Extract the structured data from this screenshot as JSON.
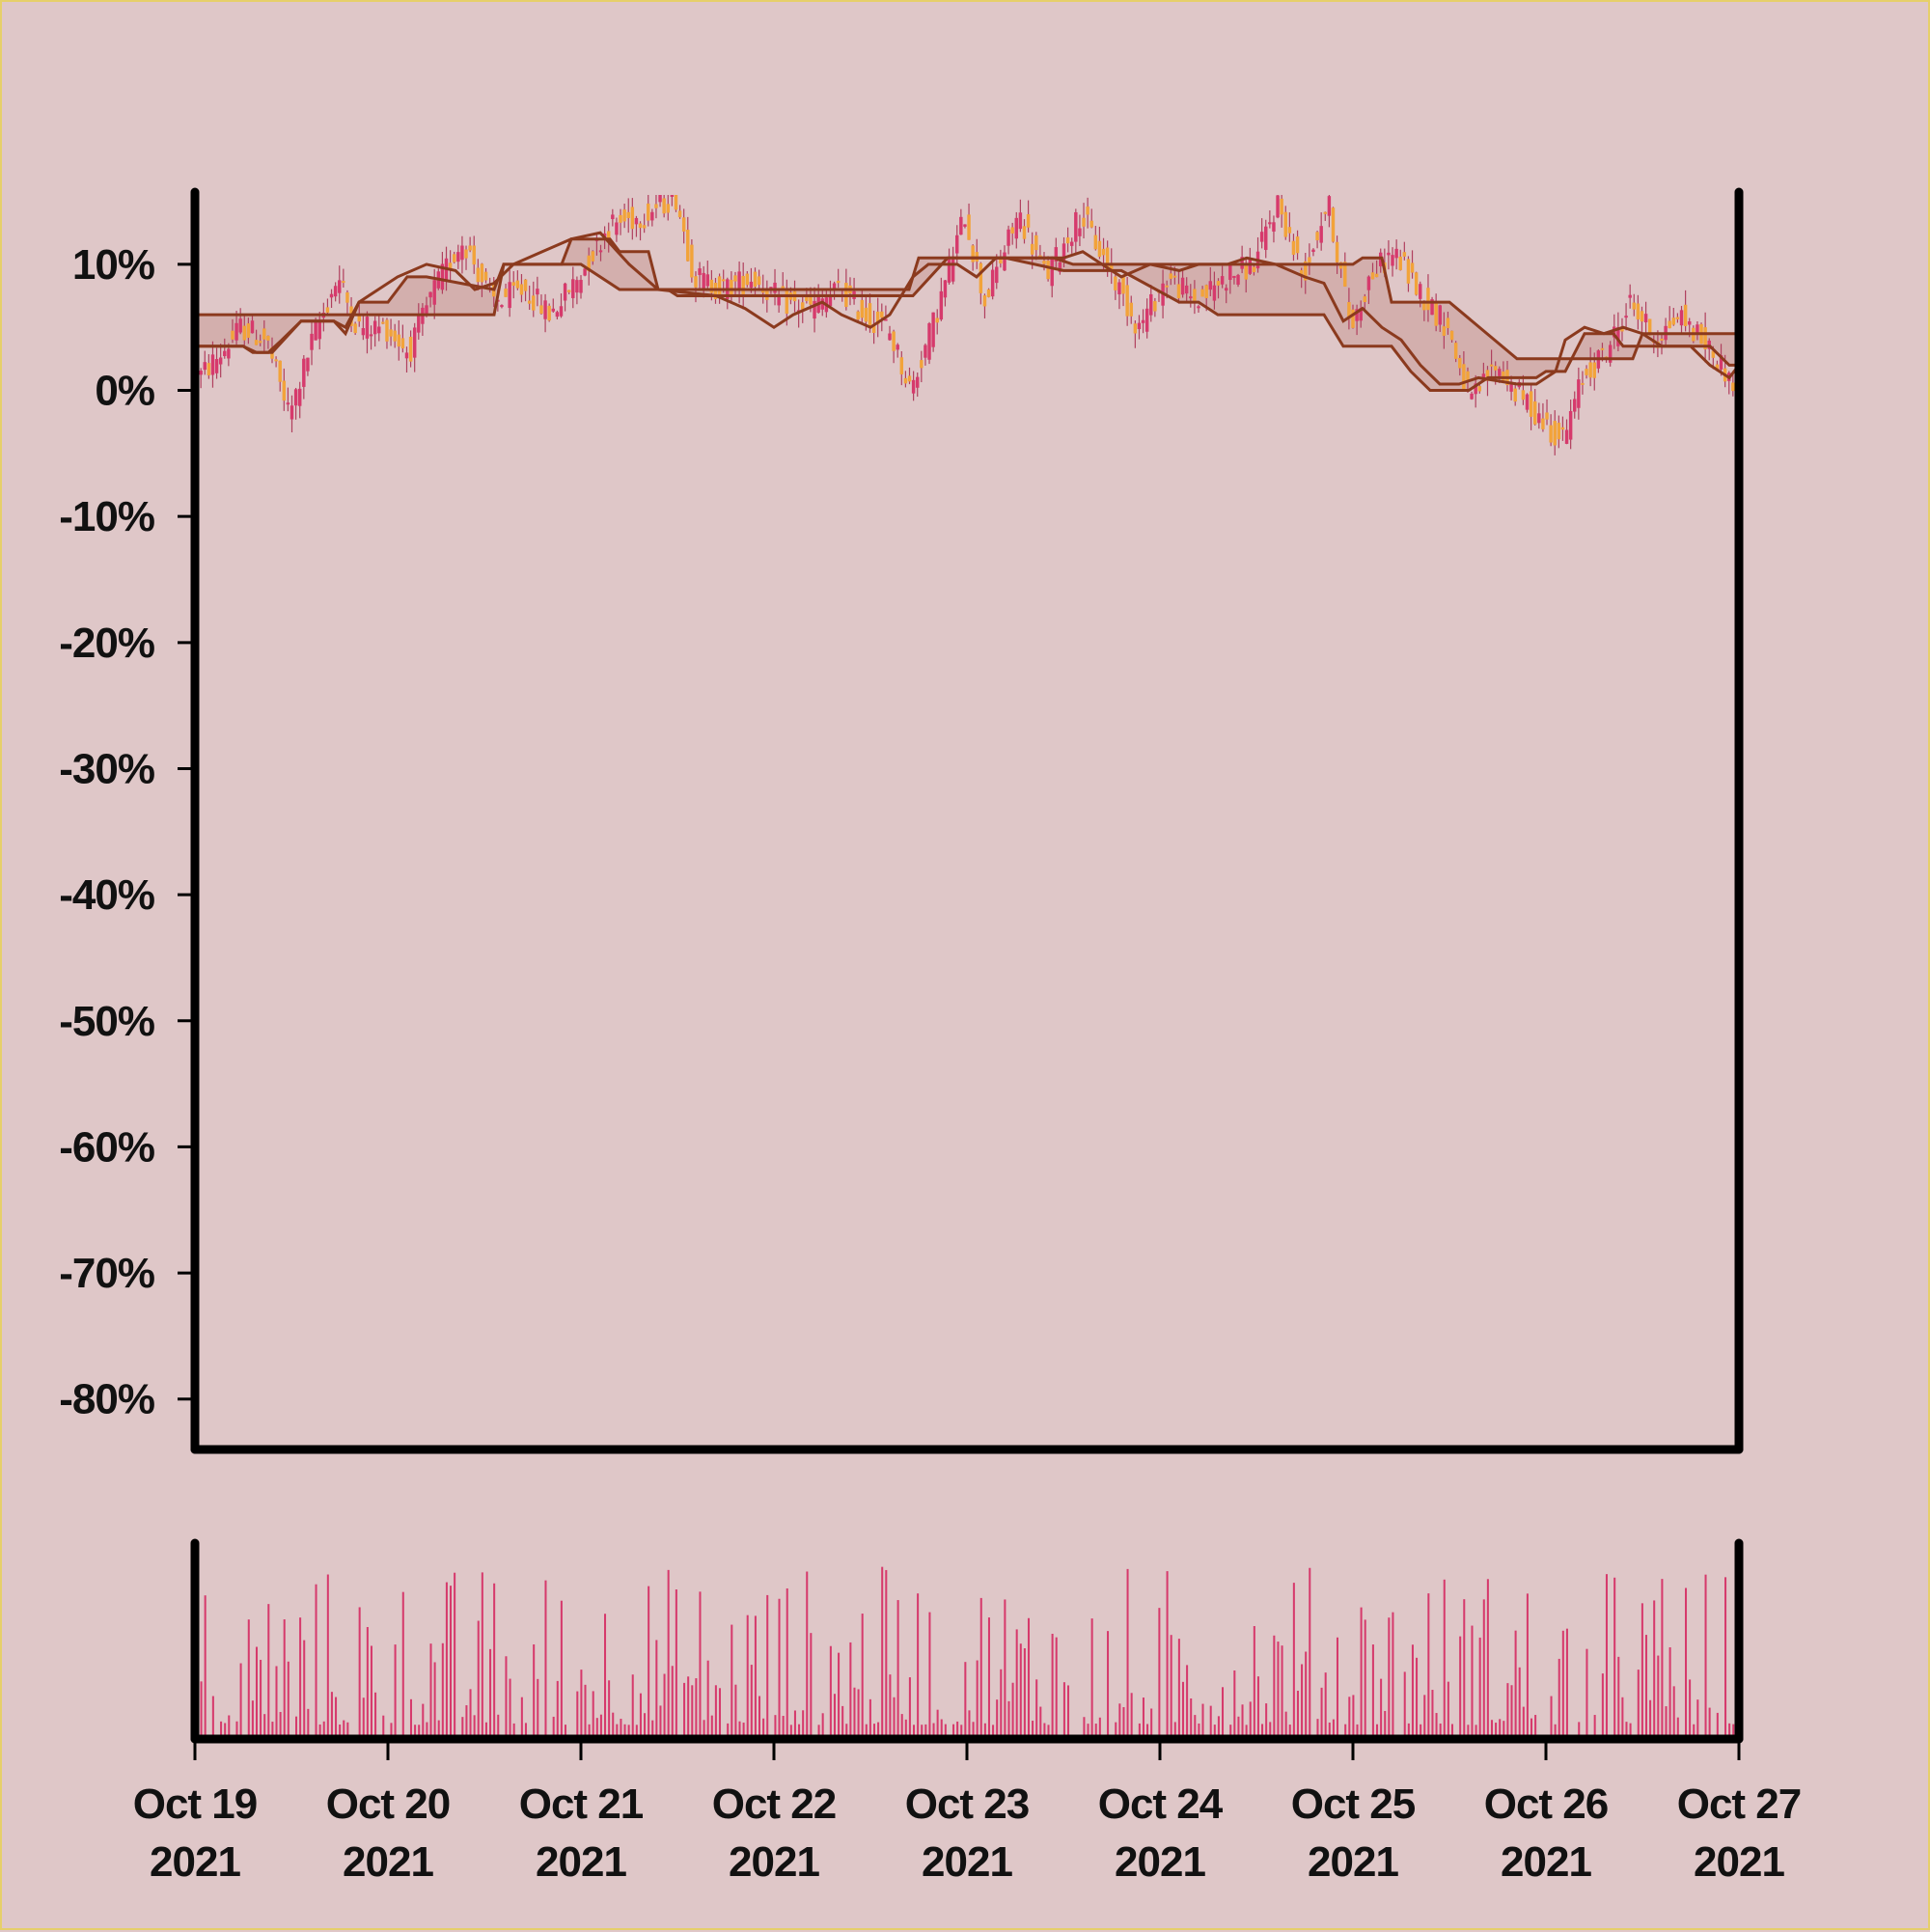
{
  "chart_data": {
    "type": "candlestick",
    "x_axis": {
      "type": "date",
      "range": [
        "2021-10-19",
        "2021-10-27"
      ],
      "ticks": [
        {
          "line1": "Oct 19",
          "line2": "2021"
        },
        {
          "line1": "Oct 20",
          "line2": "2021"
        },
        {
          "line1": "Oct 21",
          "line2": "2021"
        },
        {
          "line1": "Oct 22",
          "line2": "2021"
        },
        {
          "line1": "Oct 23",
          "line2": "2021"
        },
        {
          "line1": "Oct 24",
          "line2": "2021"
        },
        {
          "line1": "Oct 25",
          "line2": "2021"
        },
        {
          "line1": "Oct 26",
          "line2": "2021"
        },
        {
          "line1": "Oct 27",
          "line2": "2021"
        }
      ]
    },
    "y_axis": {
      "unit": "percent",
      "range": [
        -84,
        15.5
      ],
      "tick_values": [
        10,
        0,
        -10,
        -20,
        -30,
        -40,
        -50,
        -60,
        -70,
        -80
      ],
      "tick_labels": [
        "10%",
        "0%",
        "-10%",
        "-20%",
        "-30%",
        "-40%",
        "-50%",
        "-60%",
        "-70%",
        "-80%"
      ]
    },
    "price_path": [
      [
        0,
        0.5
      ],
      [
        0.15,
        3
      ],
      [
        0.25,
        5
      ],
      [
        0.38,
        4
      ],
      [
        0.5,
        -2
      ],
      [
        0.62,
        4
      ],
      [
        0.75,
        9
      ],
      [
        0.85,
        5
      ],
      [
        1.0,
        5
      ],
      [
        1.12,
        3
      ],
      [
        1.25,
        8
      ],
      [
        1.4,
        12
      ],
      [
        1.55,
        7
      ],
      [
        1.72,
        8
      ],
      [
        1.85,
        6
      ],
      [
        2.0,
        9
      ],
      [
        2.15,
        13
      ],
      [
        2.35,
        14
      ],
      [
        2.5,
        15.5
      ],
      [
        2.6,
        9
      ],
      [
        2.75,
        8
      ],
      [
        2.9,
        9
      ],
      [
        3.05,
        7
      ],
      [
        3.2,
        6.5
      ],
      [
        3.35,
        8
      ],
      [
        3.48,
        6
      ],
      [
        3.6,
        5
      ],
      [
        3.72,
        0
      ],
      [
        3.85,
        6
      ],
      [
        4.0,
        14
      ],
      [
        4.1,
        7
      ],
      [
        4.28,
        14
      ],
      [
        4.42,
        9
      ],
      [
        4.6,
        14
      ],
      [
        4.8,
        8
      ],
      [
        4.9,
        5
      ],
      [
        5.05,
        9
      ],
      [
        5.2,
        7
      ],
      [
        5.35,
        9
      ],
      [
        5.5,
        10
      ],
      [
        5.62,
        15
      ],
      [
        5.75,
        9
      ],
      [
        5.88,
        15
      ],
      [
        6.0,
        5
      ],
      [
        6.1,
        9
      ],
      [
        6.22,
        11
      ],
      [
        6.35,
        8
      ],
      [
        6.5,
        5
      ],
      [
        6.62,
        -1
      ],
      [
        6.75,
        2
      ],
      [
        6.85,
        0
      ],
      [
        7.0,
        -2.5
      ],
      [
        7.1,
        -4
      ],
      [
        7.2,
        1
      ],
      [
        7.32,
        3
      ],
      [
        7.45,
        7
      ],
      [
        7.58,
        4
      ],
      [
        7.7,
        6
      ],
      [
        7.82,
        4
      ],
      [
        7.92,
        2
      ],
      [
        8.0,
        0
      ]
    ],
    "envelope": {
      "upper": [
        [
          0,
          6
        ],
        [
          0.75,
          6
        ],
        [
          0.85,
          6
        ],
        [
          1.55,
          6
        ],
        [
          1.6,
          10
        ],
        [
          1.9,
          10
        ],
        [
          1.95,
          12
        ],
        [
          2.15,
          12
        ],
        [
          2.2,
          11
        ],
        [
          2.35,
          11
        ],
        [
          2.4,
          8
        ],
        [
          3.0,
          8
        ],
        [
          3.5,
          8
        ],
        [
          3.7,
          8
        ],
        [
          3.75,
          10.5
        ],
        [
          4.25,
          10.5
        ],
        [
          4.45,
          10.5
        ],
        [
          4.55,
          10
        ],
        [
          5.5,
          10
        ],
        [
          6.0,
          10
        ],
        [
          6.05,
          10.5
        ],
        [
          6.15,
          10.5
        ],
        [
          6.2,
          7
        ],
        [
          6.5,
          7
        ],
        [
          6.85,
          2.5
        ],
        [
          7.0,
          2.5
        ],
        [
          7.45,
          2.5
        ],
        [
          7.5,
          4.5
        ],
        [
          8.0,
          4.5
        ]
      ],
      "lower": [
        [
          0,
          3.5
        ],
        [
          0.25,
          3.5
        ],
        [
          0.3,
          3
        ],
        [
          0.38,
          3
        ],
        [
          0.45,
          4
        ],
        [
          0.55,
          5.5
        ],
        [
          0.72,
          5.5
        ],
        [
          0.78,
          5
        ],
        [
          0.85,
          7
        ],
        [
          1.0,
          7
        ],
        [
          1.1,
          9
        ],
        [
          1.2,
          9
        ],
        [
          1.55,
          8
        ],
        [
          1.6,
          10
        ],
        [
          1.8,
          10
        ],
        [
          2.0,
          10
        ],
        [
          2.05,
          9.5
        ],
        [
          2.2,
          8
        ],
        [
          2.45,
          8
        ],
        [
          2.5,
          7.5
        ],
        [
          3.0,
          7.5
        ],
        [
          3.5,
          7.5
        ],
        [
          3.72,
          7.5
        ],
        [
          3.9,
          10.5
        ],
        [
          4.2,
          10.5
        ],
        [
          4.5,
          9.5
        ],
        [
          4.8,
          9.5
        ],
        [
          5.1,
          7
        ],
        [
          5.2,
          7
        ],
        [
          5.3,
          6
        ],
        [
          5.8,
          6
        ],
        [
          5.85,
          6
        ],
        [
          5.95,
          3.5
        ],
        [
          6.2,
          3.5
        ],
        [
          6.3,
          1.5
        ],
        [
          6.4,
          0
        ],
        [
          6.6,
          0
        ],
        [
          6.7,
          1
        ],
        [
          6.95,
          1
        ],
        [
          7.0,
          1.5
        ],
        [
          7.1,
          1.5
        ],
        [
          7.2,
          4.5
        ],
        [
          7.35,
          4.5
        ],
        [
          7.4,
          3.5
        ],
        [
          7.85,
          3.5
        ],
        [
          7.95,
          2
        ],
        [
          8.0,
          2
        ]
      ]
    },
    "moving_average": [
      [
        0,
        3.5
      ],
      [
        0.25,
        3.5
      ],
      [
        0.32,
        3
      ],
      [
        0.4,
        3
      ],
      [
        0.55,
        5.5
      ],
      [
        0.72,
        5.5
      ],
      [
        0.78,
        4.5
      ],
      [
        0.85,
        7
      ],
      [
        0.95,
        8
      ],
      [
        1.05,
        9
      ],
      [
        1.2,
        10
      ],
      [
        1.35,
        9.5
      ],
      [
        1.45,
        8
      ],
      [
        1.55,
        8.5
      ],
      [
        1.65,
        10
      ],
      [
        1.8,
        11
      ],
      [
        1.95,
        12
      ],
      [
        2.1,
        12.5
      ],
      [
        2.25,
        10
      ],
      [
        2.4,
        8
      ],
      [
        2.7,
        7.5
      ],
      [
        2.85,
        6.5
      ],
      [
        3.0,
        5
      ],
      [
        3.1,
        6
      ],
      [
        3.25,
        7
      ],
      [
        3.35,
        6
      ],
      [
        3.5,
        5
      ],
      [
        3.6,
        6
      ],
      [
        3.72,
        9
      ],
      [
        3.8,
        10
      ],
      [
        3.95,
        10
      ],
      [
        4.05,
        9
      ],
      [
        4.15,
        10.5
      ],
      [
        4.35,
        10.5
      ],
      [
        4.5,
        10.5
      ],
      [
        4.6,
        11
      ],
      [
        4.7,
        10
      ],
      [
        4.8,
        9
      ],
      [
        4.95,
        10
      ],
      [
        5.1,
        9.5
      ],
      [
        5.2,
        10
      ],
      [
        5.35,
        10
      ],
      [
        5.45,
        10.5
      ],
      [
        5.6,
        10
      ],
      [
        5.75,
        9
      ],
      [
        5.85,
        8.5
      ],
      [
        5.95,
        5.5
      ],
      [
        6.05,
        6.5
      ],
      [
        6.15,
        5
      ],
      [
        6.25,
        4
      ],
      [
        6.35,
        2
      ],
      [
        6.45,
        0.5
      ],
      [
        6.55,
        0.5
      ],
      [
        6.65,
        1
      ],
      [
        6.85,
        0.5
      ],
      [
        6.95,
        0.5
      ],
      [
        7.05,
        1.5
      ],
      [
        7.1,
        4
      ],
      [
        7.2,
        5
      ],
      [
        7.3,
        4.5
      ],
      [
        7.4,
        5
      ],
      [
        7.5,
        4.5
      ],
      [
        7.6,
        3.5
      ],
      [
        7.75,
        3.5
      ],
      [
        7.85,
        2
      ],
      [
        7.95,
        1
      ],
      [
        8.0,
        2
      ]
    ],
    "volume": {
      "bar_count": 390,
      "min_fraction": 0.08,
      "max_fraction": 1.0
    },
    "colors": {
      "background": "#dfc7c8",
      "frame": "#e6cf6a",
      "axis": "#000000",
      "candle_up": "#d63a6c",
      "candle_down": "#f2a33a",
      "wick": "#b0405e",
      "envelope_line": "#8b3a1e",
      "envelope_fill": "#c89a98",
      "moving_average": "#8b3a1e",
      "volume_bar": "#d63a6c"
    }
  }
}
